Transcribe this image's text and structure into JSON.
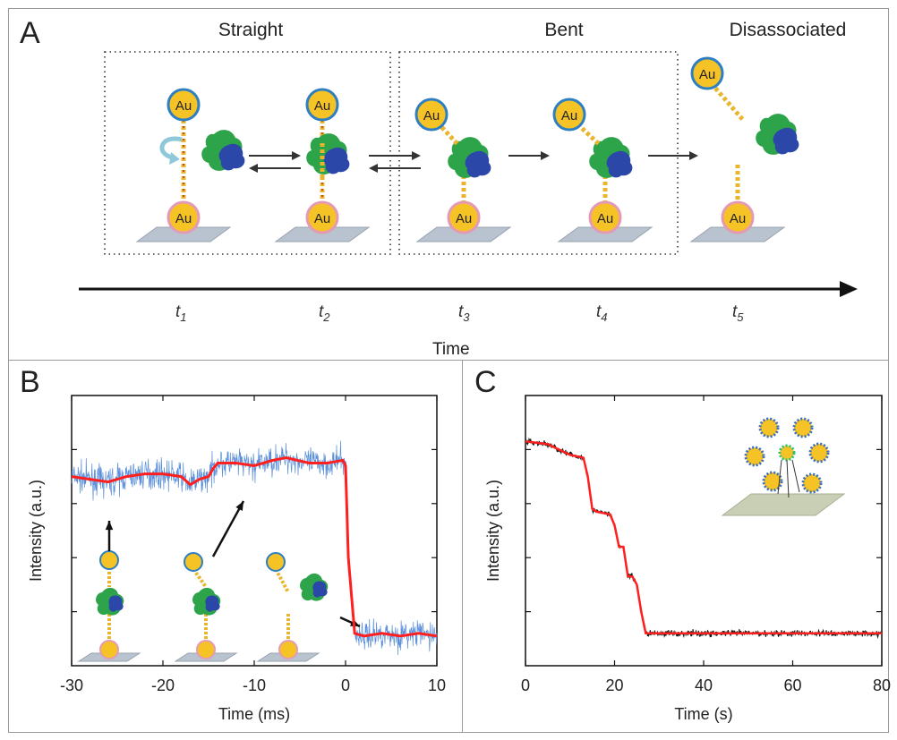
{
  "panel_a": {
    "letter": "A",
    "stages": [
      "Straight",
      "Bent",
      "Disassociated"
    ],
    "particle_label": "Au",
    "time_points": [
      {
        "base": "t",
        "sub": "1"
      },
      {
        "base": "t",
        "sub": "2"
      },
      {
        "base": "t",
        "sub": "3"
      },
      {
        "base": "t",
        "sub": "4"
      },
      {
        "base": "t",
        "sub": "5"
      }
    ],
    "axis_label": "Time"
  },
  "panel_b": {
    "letter": "B"
  },
  "panel_c": {
    "letter": "C"
  },
  "chart_data": [
    {
      "type": "line",
      "xlabel": "Time (ms)",
      "ylabel": "Intensity (a.u.)",
      "xlim": [
        -30,
        10
      ],
      "xticks": [
        -30,
        -20,
        -10,
        0,
        10
      ],
      "series": [
        {
          "x": [
            -30,
            -28,
            -26,
            -24,
            -22,
            -20,
            -18,
            -17,
            -16,
            -15,
            -14.5,
            -14,
            -12,
            -10,
            -8,
            -6.5,
            -4,
            -2,
            -0.3,
            0,
            0.3,
            1,
            2,
            4,
            6,
            8,
            10
          ],
          "y": [
            0.7,
            0.69,
            0.68,
            0.7,
            0.71,
            0.71,
            0.7,
            0.67,
            0.69,
            0.7,
            0.73,
            0.75,
            0.75,
            0.74,
            0.76,
            0.77,
            0.75,
            0.75,
            0.76,
            0.74,
            0.4,
            0.12,
            0.11,
            0.12,
            0.11,
            0.12,
            0.11
          ]
        }
      ]
    },
    {
      "type": "line",
      "xlabel": "Time (s)",
      "ylabel": "Intensity (a.u.)",
      "xlim": [
        0,
        80
      ],
      "xticks": [
        0,
        20,
        40,
        60,
        80
      ],
      "series": [
        {
          "x": [
            0,
            5,
            10,
            13,
            14,
            15,
            16,
            19,
            20,
            21,
            22,
            23,
            24,
            25,
            26,
            27,
            30,
            40,
            50,
            60,
            70,
            80
          ],
          "y": [
            0.83,
            0.82,
            0.78,
            0.77,
            0.7,
            0.58,
            0.57,
            0.56,
            0.52,
            0.44,
            0.44,
            0.33,
            0.33,
            0.3,
            0.2,
            0.12,
            0.12,
            0.12,
            0.12,
            0.12,
            0.12,
            0.12
          ]
        }
      ]
    }
  ],
  "colors": {
    "gold": "#f6c326",
    "ring_top": "#2d7fc1",
    "ring_bottom": "#e49ab5",
    "protein_green": "#2ea44a",
    "protein_blue": "#2b47a8",
    "raw_b": "#5b8fd9",
    "raw_c": "#0f1a14",
    "fit": "#ff1f1f"
  }
}
